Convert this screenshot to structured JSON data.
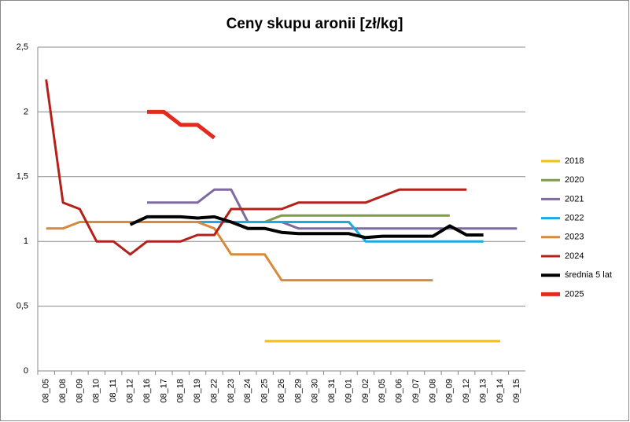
{
  "chart_data": {
    "type": "line",
    "title": "Ceny skupu aronii [zł/kg]",
    "categories": [
      "08_05",
      "08_08",
      "08_09",
      "08_10",
      "08_11",
      "08_12",
      "08_16",
      "08_17",
      "08_18",
      "08_19",
      "08_22",
      "08_23",
      "08_24",
      "08_25",
      "08_26",
      "08_29",
      "08_30",
      "08_31",
      "09_01",
      "09_02",
      "09_05",
      "09_06",
      "09_07",
      "09_08",
      "09_09",
      "09_12",
      "09_13",
      "09_14",
      "09_15"
    ],
    "series": [
      {
        "name": "2018",
        "color": "#f2c10e",
        "width": 3,
        "values": [
          null,
          null,
          null,
          null,
          null,
          null,
          null,
          null,
          null,
          null,
          null,
          null,
          null,
          0.23,
          0.23,
          0.23,
          0.23,
          0.23,
          0.23,
          0.23,
          0.23,
          0.23,
          0.23,
          0.23,
          0.23,
          0.23,
          0.23,
          0.23,
          null
        ]
      },
      {
        "name": "2020",
        "color": "#7f9a48",
        "width": 3,
        "values": [
          null,
          null,
          null,
          null,
          null,
          null,
          null,
          null,
          null,
          null,
          null,
          null,
          1.15,
          1.15,
          1.2,
          1.2,
          1.2,
          1.2,
          1.2,
          1.2,
          1.2,
          1.2,
          1.2,
          1.2,
          1.2,
          null,
          null,
          null,
          null
        ]
      },
      {
        "name": "2021",
        "color": "#7f6a9f",
        "width": 3,
        "values": [
          null,
          null,
          null,
          null,
          null,
          null,
          1.3,
          1.3,
          1.3,
          1.3,
          1.4,
          1.4,
          1.15,
          1.15,
          1.15,
          1.1,
          1.1,
          1.1,
          1.1,
          1.1,
          1.1,
          1.1,
          1.1,
          1.1,
          1.1,
          1.1,
          1.1,
          1.1,
          1.1
        ]
      },
      {
        "name": "2022",
        "color": "#1ca8e0",
        "width": 3,
        "values": [
          null,
          null,
          null,
          null,
          null,
          null,
          null,
          null,
          null,
          1.15,
          1.15,
          1.15,
          1.15,
          1.15,
          1.15,
          1.15,
          1.15,
          1.15,
          1.15,
          1.0,
          1.0,
          1.0,
          1.0,
          1.0,
          1.0,
          1.0,
          1.0,
          null,
          null
        ]
      },
      {
        "name": "2023",
        "color": "#d9893b",
        "width": 3,
        "values": [
          1.1,
          1.1,
          1.15,
          1.15,
          1.15,
          1.15,
          1.15,
          1.15,
          1.15,
          1.15,
          1.1,
          0.9,
          0.9,
          0.9,
          0.7,
          0.7,
          0.7,
          0.7,
          0.7,
          0.7,
          0.7,
          0.7,
          0.7,
          0.7,
          null,
          null,
          null,
          null,
          null
        ]
      },
      {
        "name": "2024",
        "color": "#b4201a",
        "width": 3,
        "values": [
          2.25,
          1.3,
          1.25,
          1.0,
          1.0,
          0.9,
          1.0,
          1.0,
          1.0,
          1.05,
          1.05,
          1.25,
          1.25,
          1.25,
          1.25,
          1.3,
          1.3,
          1.3,
          1.3,
          1.3,
          1.35,
          1.4,
          1.4,
          1.4,
          1.4,
          1.4,
          null,
          null,
          null
        ]
      },
      {
        "name": "średnia 5 lat",
        "color": "#000000",
        "width": 4,
        "values": [
          null,
          null,
          null,
          null,
          null,
          1.13,
          1.19,
          1.19,
          1.19,
          1.18,
          1.19,
          1.15,
          1.1,
          1.1,
          1.07,
          1.06,
          1.06,
          1.06,
          1.06,
          1.03,
          1.04,
          1.04,
          1.04,
          1.04,
          1.12,
          1.05,
          1.05,
          null,
          null
        ]
      },
      {
        "name": "2025",
        "color": "#e42a1f",
        "width": 5,
        "values": [
          null,
          null,
          null,
          null,
          null,
          null,
          2.0,
          2.0,
          1.9,
          1.9,
          1.8,
          null,
          null,
          null,
          null,
          null,
          null,
          null,
          null,
          null,
          null,
          null,
          null,
          null,
          null,
          null,
          null,
          null,
          null
        ]
      }
    ],
    "ylim": [
      0,
      2.5
    ],
    "yticks": [
      0,
      {
        "value": 0.5,
        "label": "0,5"
      },
      1,
      {
        "value": 1.5,
        "label": "1,5"
      },
      2,
      {
        "value": 2.5,
        "label": "2,5"
      }
    ],
    "grid": true,
    "legend": "right"
  }
}
